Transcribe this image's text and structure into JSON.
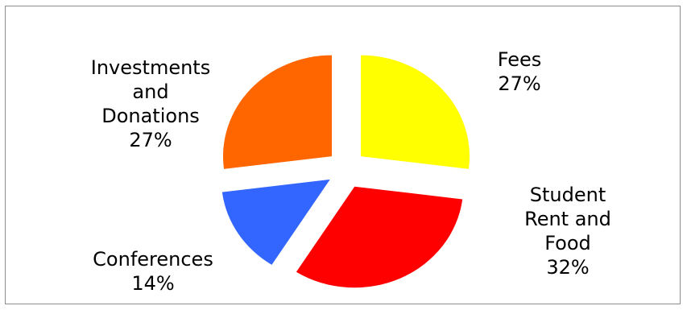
{
  "chart_data": {
    "type": "pie",
    "title": "",
    "slices": [
      {
        "name": "Fees",
        "value": 27,
        "label_lines": [
          "Fees",
          "27%"
        ],
        "color": "#FFFF00"
      },
      {
        "name": "Student Rent and Food",
        "value": 32,
        "label_lines": [
          "Student",
          "Rent and",
          "Food",
          "32%"
        ],
        "color": "#FF0000"
      },
      {
        "name": "Conferences",
        "value": 14,
        "label_lines": [
          "Conferences",
          "14%"
        ],
        "color": "#3366FF"
      },
      {
        "name": "Investments and Donations",
        "value": 27,
        "label_lines": [
          "Investments",
          "and",
          "Donations",
          "27%"
        ],
        "color": "#FF6600"
      }
    ],
    "exploded": true,
    "legend": "none",
    "data_labels": "outside"
  }
}
